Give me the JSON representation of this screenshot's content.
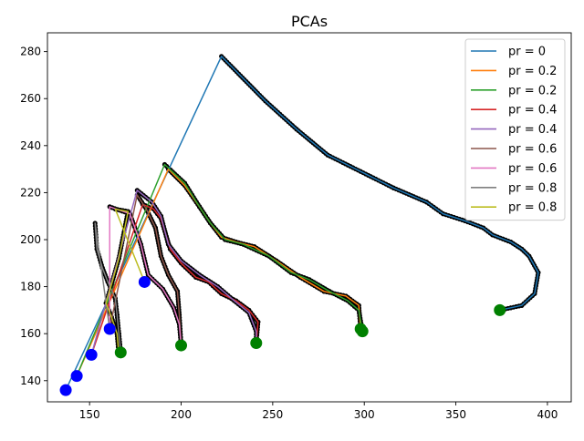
{
  "chart_data": {
    "type": "line",
    "title": "PCAs",
    "xlabel": "",
    "ylabel": "",
    "xlim": [
      127,
      413
    ],
    "ylim": [
      131,
      288
    ],
    "xticks": [
      150,
      200,
      250,
      300,
      350,
      400
    ],
    "yticks": [
      140,
      160,
      180,
      200,
      220,
      240,
      260,
      280
    ],
    "grid": false,
    "legend_position": "top-right",
    "series": [
      {
        "name": "pr = 0",
        "color": "#1f77b4",
        "points": [
          [
            137,
            136
          ],
          [
            222,
            278
          ],
          [
            246,
            259
          ],
          [
            263,
            247
          ],
          [
            280,
            236
          ],
          [
            298,
            229
          ],
          [
            316,
            222
          ],
          [
            334,
            216
          ],
          [
            343,
            211
          ],
          [
            355,
            208
          ],
          [
            365,
            205
          ],
          [
            370,
            202
          ],
          [
            380,
            199
          ],
          [
            386,
            196
          ],
          [
            390,
            193
          ],
          [
            395,
            186
          ],
          [
            393,
            177
          ],
          [
            386,
            172
          ],
          [
            380,
            171
          ],
          [
            374,
            170
          ]
        ]
      },
      {
        "name": "pr = 0.2",
        "color": "#ff7f0e",
        "points": [
          [
            143,
            142
          ],
          [
            193,
            230
          ],
          [
            202,
            223
          ],
          [
            210,
            214
          ],
          [
            216,
            207
          ],
          [
            222,
            201
          ],
          [
            230,
            199
          ],
          [
            240,
            197
          ],
          [
            252,
            191
          ],
          [
            265,
            184
          ],
          [
            278,
            178
          ],
          [
            290,
            176
          ],
          [
            297,
            172
          ],
          [
            298,
            162
          ]
        ]
      },
      {
        "name": "pr = 0.2",
        "color": "#2ca02c",
        "points": [
          [
            143,
            142
          ],
          [
            191,
            232
          ],
          [
            202,
            224
          ],
          [
            210,
            214
          ],
          [
            216,
            207
          ],
          [
            224,
            200
          ],
          [
            234,
            198
          ],
          [
            248,
            193
          ],
          [
            260,
            186
          ],
          [
            270,
            183
          ],
          [
            281,
            178
          ],
          [
            291,
            174
          ],
          [
            297,
            170
          ],
          [
            299,
            161
          ]
        ]
      },
      {
        "name": "pr = 0.4",
        "color": "#d62728",
        "points": [
          [
            151,
            151
          ],
          [
            179,
            215
          ],
          [
            185,
            213
          ],
          [
            189,
            209
          ],
          [
            194,
            196
          ],
          [
            200,
            190
          ],
          [
            208,
            184
          ],
          [
            215,
            182
          ],
          [
            222,
            177
          ],
          [
            230,
            174
          ],
          [
            237,
            170
          ],
          [
            242,
            165
          ],
          [
            241,
            156
          ]
        ]
      },
      {
        "name": "pr = 0.4",
        "color": "#9467bd",
        "points": [
          [
            151,
            151
          ],
          [
            176,
            221
          ],
          [
            184,
            216
          ],
          [
            189,
            210
          ],
          [
            193,
            198
          ],
          [
            200,
            191
          ],
          [
            210,
            185
          ],
          [
            220,
            180
          ],
          [
            229,
            174
          ],
          [
            237,
            169
          ],
          [
            241,
            161
          ],
          [
            241,
            156
          ]
        ]
      },
      {
        "name": "pr = 0.6",
        "color": "#8c564b",
        "points": [
          [
            161,
            162
          ],
          [
            176,
            219
          ],
          [
            181,
            213
          ],
          [
            186,
            205
          ],
          [
            189,
            193
          ],
          [
            193,
            185
          ],
          [
            198,
            178
          ],
          [
            199,
            168
          ],
          [
            200,
            155
          ]
        ]
      },
      {
        "name": "pr = 0.6",
        "color": "#e377c2",
        "points": [
          [
            161,
            162
          ],
          [
            161,
            214
          ],
          [
            172,
            211
          ],
          [
            178,
            198
          ],
          [
            182,
            185
          ],
          [
            190,
            179
          ],
          [
            196,
            171
          ],
          [
            199,
            164
          ],
          [
            200,
            155
          ]
        ]
      },
      {
        "name": "pr = 0.8",
        "color": "#7f7f7f",
        "points": [
          [
            161,
            162
          ],
          [
            153,
            207
          ],
          [
            154,
            196
          ],
          [
            157,
            188
          ],
          [
            160,
            182
          ],
          [
            164,
            175
          ],
          [
            165,
            168
          ],
          [
            166,
            160
          ],
          [
            167,
            152
          ]
        ]
      },
      {
        "name": "pr = 0.8",
        "color": "#bcbd22",
        "points": [
          [
            180,
            182
          ],
          [
            164,
            213
          ],
          [
            171,
            212
          ],
          [
            166,
            192
          ],
          [
            162,
            181
          ],
          [
            159,
            173
          ],
          [
            162,
            167
          ],
          [
            165,
            160
          ],
          [
            166,
            151
          ]
        ]
      }
    ],
    "markers": {
      "start_color": "#0000ff",
      "end_color": "#008000",
      "start_points": [
        [
          137,
          136
        ],
        [
          143,
          142
        ],
        [
          151,
          151
        ],
        [
          161,
          162
        ],
        [
          180,
          182
        ]
      ],
      "end_points": [
        [
          374,
          170
        ],
        [
          298,
          162
        ],
        [
          299,
          161
        ],
        [
          241,
          156
        ],
        [
          200,
          155
        ],
        [
          167,
          152
        ]
      ]
    }
  }
}
